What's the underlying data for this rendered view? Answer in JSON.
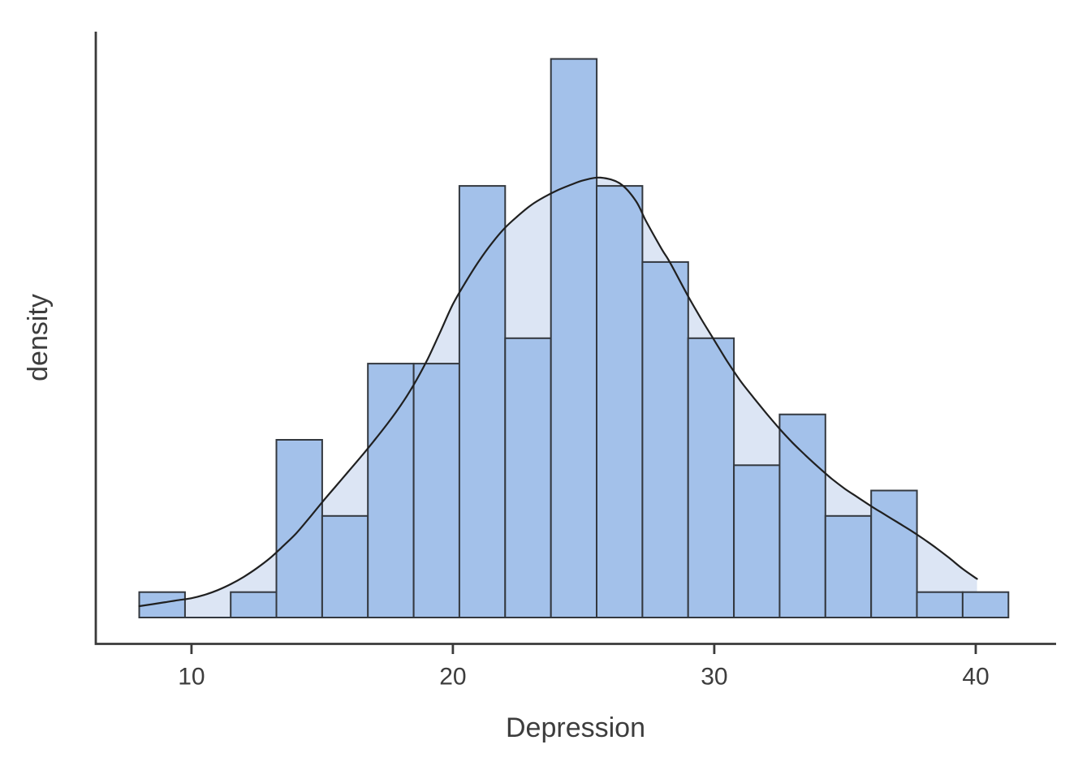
{
  "figure": {
    "x_axis_title": "Depression",
    "y_axis_title": "density"
  },
  "chart_data": {
    "type": "histogram+density",
    "title": "",
    "xlabel": "Depression",
    "ylabel": "density",
    "n": 150,
    "bin_start": 8,
    "bin_width": 1.75,
    "bin_counts": [
      1,
      0,
      1,
      7,
      4,
      10,
      10,
      17,
      11,
      22,
      17,
      14,
      11,
      6,
      8,
      4,
      5,
      1,
      1
    ],
    "x_ticks": [
      10,
      20,
      30,
      40
    ],
    "x_domain": [
      6.34,
      42.92
    ],
    "y_domain_density": [
      0,
      0.0879
    ],
    "grid": false,
    "legend": "none",
    "density_curve": [
      [
        8.0,
        0.0017
      ],
      [
        8.5,
        0.002
      ],
      [
        9.0,
        0.0023
      ],
      [
        9.5,
        0.0026
      ],
      [
        10.0,
        0.0029
      ],
      [
        10.5,
        0.0034
      ],
      [
        11.0,
        0.0041
      ],
      [
        11.5,
        0.005
      ],
      [
        12.0,
        0.0061
      ],
      [
        12.5,
        0.0074
      ],
      [
        13.0,
        0.0089
      ],
      [
        13.5,
        0.0107
      ],
      [
        14.0,
        0.0126
      ],
      [
        14.5,
        0.0149
      ],
      [
        15.0,
        0.0173
      ],
      [
        15.5,
        0.0196
      ],
      [
        16.0,
        0.0219
      ],
      [
        16.5,
        0.0242
      ],
      [
        17.0,
        0.0266
      ],
      [
        17.5,
        0.0291
      ],
      [
        18.0,
        0.0318
      ],
      [
        18.5,
        0.0349
      ],
      [
        19.0,
        0.0385
      ],
      [
        19.5,
        0.0427
      ],
      [
        20.0,
        0.047
      ],
      [
        20.5,
        0.0504
      ],
      [
        21.0,
        0.0535
      ],
      [
        21.5,
        0.0562
      ],
      [
        22.0,
        0.0585
      ],
      [
        22.5,
        0.0603
      ],
      [
        23.0,
        0.0619
      ],
      [
        23.5,
        0.0631
      ],
      [
        24.0,
        0.0641
      ],
      [
        24.5,
        0.0649
      ],
      [
        25.0,
        0.0656
      ],
      [
        25.65,
        0.066
      ],
      [
        26.4,
        0.0651
      ],
      [
        27.0,
        0.0625
      ],
      [
        27.4,
        0.0594
      ],
      [
        28.0,
        0.0552
      ],
      [
        28.3,
        0.0533
      ],
      [
        29.0,
        0.0482
      ],
      [
        29.5,
        0.0448
      ],
      [
        30.0,
        0.0416
      ],
      [
        30.5,
        0.0384
      ],
      [
        31.0,
        0.0355
      ],
      [
        31.5,
        0.033
      ],
      [
        32.0,
        0.0306
      ],
      [
        32.5,
        0.0283
      ],
      [
        33.0,
        0.0262
      ],
      [
        33.5,
        0.0243
      ],
      [
        34.0,
        0.0225
      ],
      [
        34.5,
        0.0208
      ],
      [
        35.0,
        0.0193
      ],
      [
        35.5,
        0.018
      ],
      [
        36.0,
        0.0167
      ],
      [
        36.5,
        0.0155
      ],
      [
        37.0,
        0.0143
      ],
      [
        37.5,
        0.0131
      ],
      [
        38.0,
        0.0118
      ],
      [
        38.5,
        0.0104
      ],
      [
        39.0,
        0.0089
      ],
      [
        39.5,
        0.0073
      ],
      [
        40.05,
        0.0058
      ]
    ],
    "colors": {
      "bar_fill": "#a3c1ea",
      "bar_border": "#33383f",
      "density_fill": "#dce5f4",
      "density_line": "#202020",
      "axis": "#3a3a3a",
      "text": "#3d3d3d"
    }
  }
}
